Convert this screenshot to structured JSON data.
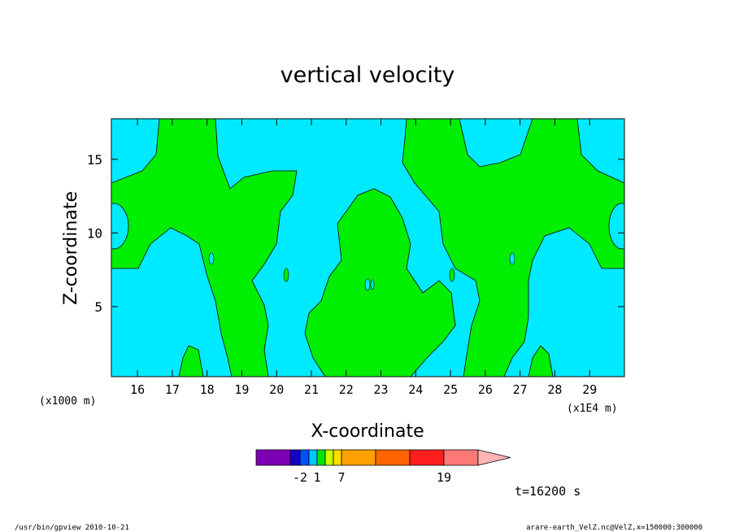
{
  "chart_data": {
    "type": "heatmap",
    "subtype": "filled-contour",
    "title": "vertical velocity",
    "xlabel": "X-coordinate",
    "ylabel": "Z-coordinate",
    "x_unit_label": "(x1E4 m)",
    "y_unit_label": "(x1000 m)",
    "xlim": [
      15.25,
      30
    ],
    "ylim": [
      0.25,
      17.75
    ],
    "x_ticks": [
      16,
      17,
      18,
      19,
      20,
      21,
      22,
      23,
      24,
      25,
      26,
      27,
      28,
      29
    ],
    "y_ticks": [
      5,
      10,
      15
    ],
    "contour_levels": {
      "colors": [
        "#7d00b4",
        "#1400c8",
        "#0050ff",
        "#00c8ff",
        "#00e600",
        "#c8ff00",
        "#ffdc00",
        "#ffa000",
        "#ff6400",
        "#ff1e1e",
        "#ff7878",
        "#ffb4b4"
      ],
      "labels": [
        "-2",
        "1",
        "7",
        "19"
      ],
      "visible_in_plot": [
        "#00eaff",
        "#00ee00"
      ]
    },
    "grid": false,
    "legend": "colorbar bottom"
  },
  "time_label": "t=16200 s",
  "footer": {
    "program": "/usr/bin/gpview  2010-10-21",
    "source": "arare-earth_VelZ.nc@VelZ,x=150000:300000"
  }
}
